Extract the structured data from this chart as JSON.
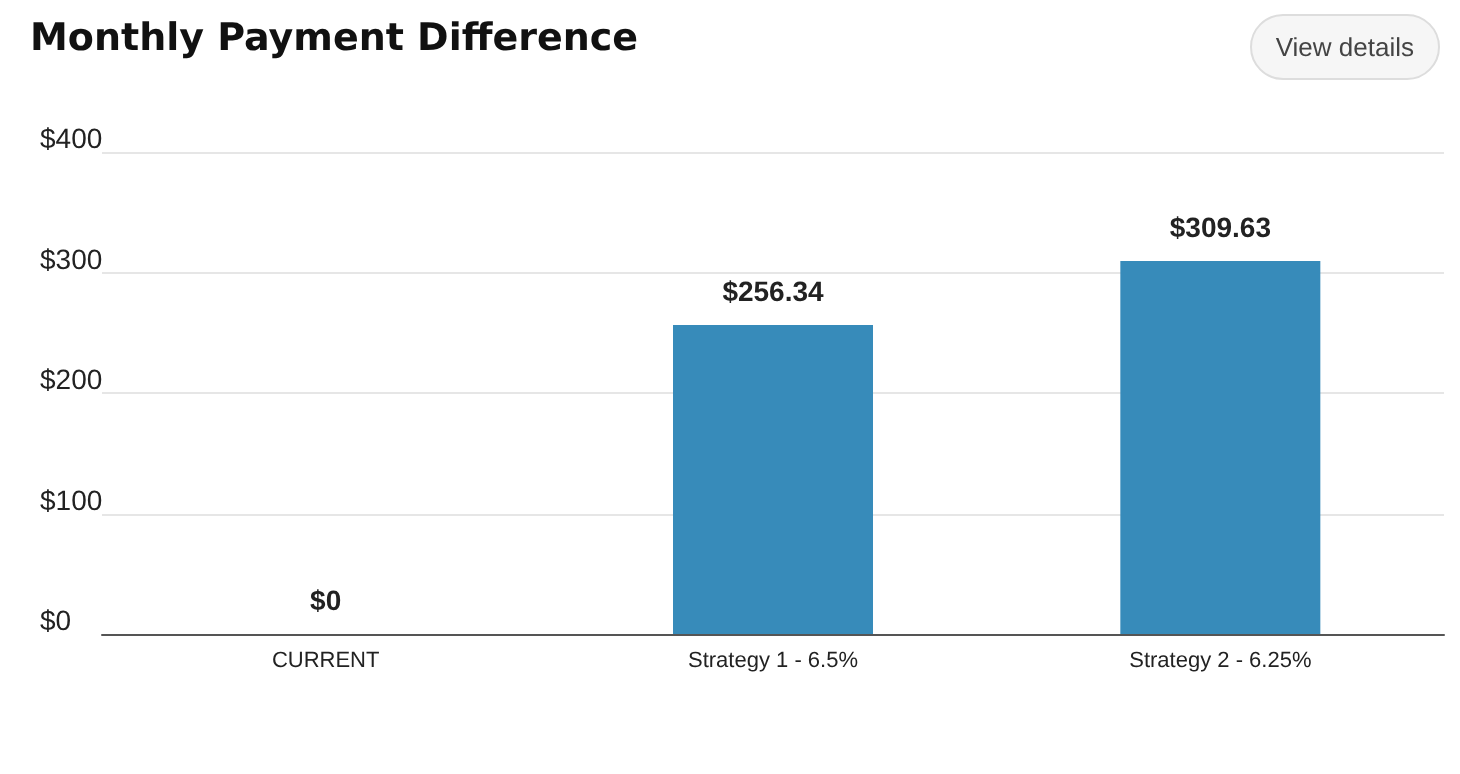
{
  "chart_data": {
    "type": "bar",
    "title": "Monthly Payment Difference",
    "annotations": [
      "View details"
    ],
    "categories": [
      "CURRENT",
      "Strategy 1 - 6.5%",
      "Strategy 2 - 6.25%"
    ],
    "values": [
      0,
      256.34,
      309.63
    ],
    "color": "#378bba",
    "value_labels": [
      "$0",
      "$256.34",
      "$309.63"
    ],
    "ylim": [
      0,
      400
    ],
    "yticks": [
      {
        "value": 0,
        "label": "$0"
      },
      {
        "value": 100,
        "label": "$100"
      },
      {
        "value": 200,
        "label": "$200"
      },
      {
        "value": 300,
        "label": "$300"
      },
      {
        "value": 400,
        "label": "$400"
      }
    ],
    "grid": "y"
  }
}
